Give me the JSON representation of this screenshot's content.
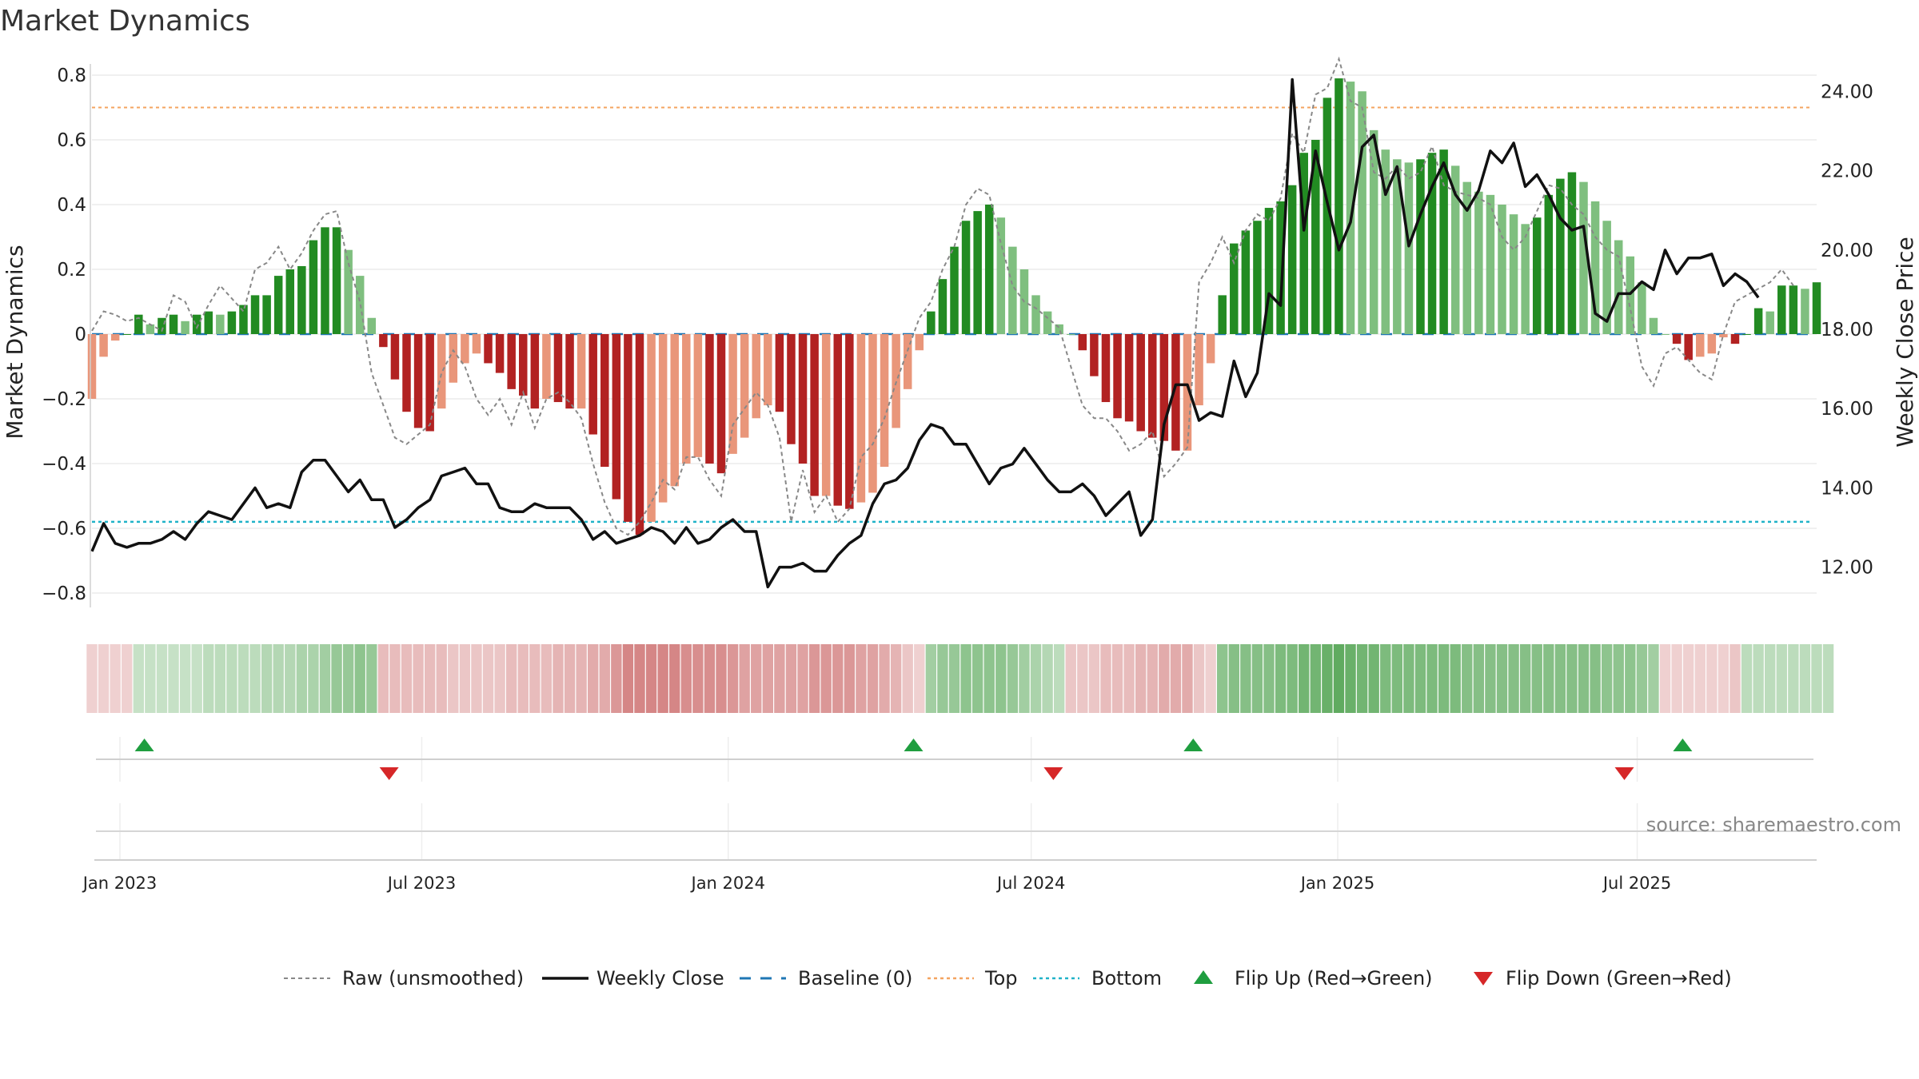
{
  "title": "Market Dynamics",
  "source": "source: sharemaestro.com",
  "colors": {
    "strong_green": "#228b22",
    "light_green": "#7fbf7f",
    "strong_red": "#b22222",
    "light_red": "#e9967a",
    "close_line": "#111111",
    "raw_line": "#888888",
    "baseline": "#1f77b4",
    "top_line": "#f4a460",
    "bottom_line": "#20b2c8",
    "flip_up": "#1f9e3f",
    "flip_down": "#d62728"
  },
  "chart_data": {
    "type": "bar",
    "title": "Market Dynamics",
    "ylabel_left": "Market Dynamics",
    "ylabel_right": "Weekly Close Price",
    "ylim_left": [
      -0.9,
      0.85
    ],
    "ylim_right": [
      10.9,
      24.7
    ],
    "left_ticks": [
      "0.8",
      "0.6",
      "0.4",
      "0.2",
      "0",
      "−0.2",
      "−0.4",
      "−0.6",
      "−0.8"
    ],
    "left_tick_values": [
      0.8,
      0.6,
      0.4,
      0.2,
      0,
      -0.2,
      -0.4,
      -0.6,
      -0.8
    ],
    "right_ticks": [
      "24.00",
      "22.00",
      "20.00",
      "18.00",
      "16.00",
      "14.00",
      "12.00"
    ],
    "right_tick_values": [
      24,
      22,
      20,
      18,
      16,
      14,
      12
    ],
    "x_ticks": [
      "Jan 2023",
      "Jul 2023",
      "Jan 2024",
      "Jul 2024",
      "Jan 2025",
      "Jul 2025"
    ],
    "x_tick_weeks": [
      2.4,
      28.3,
      54.6,
      80.6,
      106.9,
      132.6
    ],
    "top_level": 0.7,
    "bottom_level": -0.58,
    "baseline_level": 0,
    "dynamics": [
      -0.2,
      -0.07,
      -0.02,
      0,
      0.06,
      0.03,
      0.05,
      0.06,
      0.04,
      0.06,
      0.07,
      0.06,
      0.07,
      0.09,
      0.12,
      0.12,
      0.18,
      0.2,
      0.21,
      0.29,
      0.33,
      0.33,
      0.26,
      0.18,
      0.05,
      -0.04,
      -0.14,
      -0.24,
      -0.29,
      -0.3,
      -0.23,
      -0.15,
      -0.09,
      -0.06,
      -0.09,
      -0.12,
      -0.17,
      -0.19,
      -0.23,
      -0.2,
      -0.21,
      -0.23,
      -0.23,
      -0.31,
      -0.41,
      -0.51,
      -0.58,
      -0.62,
      -0.58,
      -0.52,
      -0.47,
      -0.4,
      -0.38,
      -0.4,
      -0.43,
      -0.37,
      -0.32,
      -0.26,
      -0.22,
      -0.24,
      -0.34,
      -0.4,
      -0.5,
      -0.5,
      -0.53,
      -0.54,
      -0.52,
      -0.49,
      -0.41,
      -0.29,
      -0.17,
      -0.05,
      0.07,
      0.17,
      0.27,
      0.35,
      0.38,
      0.4,
      0.36,
      0.27,
      0.2,
      0.12,
      0.07,
      0.03,
      0,
      -0.05,
      -0.13,
      -0.21,
      -0.26,
      -0.27,
      -0.3,
      -0.32,
      -0.33,
      -0.36,
      -0.36,
      -0.22,
      -0.09,
      0.12,
      0.28,
      0.32,
      0.35,
      0.39,
      0.41,
      0.46,
      0.56,
      0.6,
      0.73,
      0.79,
      0.78,
      0.75,
      0.63,
      0.57,
      0.54,
      0.53,
      0.54,
      0.56,
      0.57,
      0.52,
      0.47,
      0.44,
      0.43,
      0.4,
      0.37,
      0.34,
      0.36,
      0.43,
      0.48,
      0.5,
      0.47,
      0.41,
      0.35,
      0.29,
      0.24,
      0.16,
      0.05,
      0,
      -0.03,
      -0.08,
      -0.07,
      -0.06,
      -0.01,
      -0.03,
      0,
      0.08,
      0.07,
      0.15,
      0.15,
      0.14,
      0.16
    ],
    "raw": [
      0.01,
      0.07,
      0.06,
      0.04,
      0.05,
      0.03,
      0.01,
      0.12,
      0.1,
      0.02,
      0.09,
      0.15,
      0.11,
      0.07,
      0.2,
      0.22,
      0.27,
      0.2,
      0.25,
      0.32,
      0.37,
      0.38,
      0.22,
      0.1,
      -0.12,
      -0.22,
      -0.32,
      -0.34,
      -0.31,
      -0.28,
      -0.12,
      -0.05,
      -0.1,
      -0.2,
      -0.25,
      -0.2,
      -0.28,
      -0.18,
      -0.29,
      -0.2,
      -0.18,
      -0.21,
      -0.26,
      -0.4,
      -0.52,
      -0.6,
      -0.62,
      -0.58,
      -0.52,
      -0.45,
      -0.48,
      -0.38,
      -0.38,
      -0.45,
      -0.5,
      -0.28,
      -0.23,
      -0.18,
      -0.22,
      -0.32,
      -0.58,
      -0.42,
      -0.55,
      -0.5,
      -0.58,
      -0.54,
      -0.38,
      -0.34,
      -0.26,
      -0.15,
      -0.05,
      0.05,
      0.1,
      0.2,
      0.27,
      0.4,
      0.45,
      0.43,
      0.28,
      0.15,
      0.1,
      0.08,
      0.05,
      0.02,
      -0.1,
      -0.22,
      -0.26,
      -0.26,
      -0.3,
      -0.36,
      -0.34,
      -0.3,
      -0.44,
      -0.4,
      -0.35,
      0.16,
      0.22,
      0.3,
      0.22,
      0.32,
      0.37,
      0.35,
      0.42,
      0.62,
      0.56,
      0.74,
      0.76,
      0.85,
      0.72,
      0.7,
      0.5,
      0.48,
      0.52,
      0.48,
      0.5,
      0.58,
      0.46,
      0.44,
      0.43,
      0.42,
      0.4,
      0.3,
      0.26,
      0.3,
      0.38,
      0.46,
      0.45,
      0.4,
      0.37,
      0.3,
      0.26,
      0.24,
      0.08,
      -0.1,
      -0.16,
      -0.06,
      -0.04,
      -0.08,
      -0.12,
      -0.14,
      0,
      0.1,
      0.12,
      0.14,
      0.16,
      0.2,
      0.15
    ],
    "close": [
      12.4,
      13.1,
      12.6,
      12.5,
      12.6,
      12.6,
      12.7,
      12.9,
      12.7,
      13.1,
      13.4,
      13.3,
      13.2,
      13.6,
      14.0,
      13.5,
      13.6,
      13.5,
      14.4,
      14.7,
      14.7,
      14.3,
      13.9,
      14.2,
      13.7,
      13.7,
      13.0,
      13.2,
      13.5,
      13.7,
      14.3,
      14.4,
      14.5,
      14.1,
      14.1,
      13.5,
      13.4,
      13.4,
      13.6,
      13.5,
      13.5,
      13.5,
      13.2,
      12.7,
      12.9,
      12.6,
      12.7,
      12.8,
      13.0,
      12.9,
      12.6,
      13.0,
      12.6,
      12.7,
      13.0,
      13.2,
      12.9,
      12.9,
      11.5,
      12.0,
      12.0,
      12.1,
      11.9,
      11.9,
      12.3,
      12.6,
      12.8,
      13.6,
      14.1,
      14.2,
      14.5,
      15.2,
      15.6,
      15.5,
      15.1,
      15.1,
      14.6,
      14.1,
      14.5,
      14.6,
      15.0,
      14.6,
      14.2,
      13.9,
      13.9,
      14.1,
      13.8,
      13.3,
      13.6,
      13.9,
      12.8,
      13.2,
      15.6,
      16.6,
      16.6,
      15.7,
      15.9,
      15.8,
      17.2,
      16.3,
      16.9,
      18.9,
      18.6,
      24.3,
      20.5,
      22.5,
      21.2,
      20.0,
      20.7,
      22.6,
      22.9,
      21.4,
      22.1,
      20.1,
      20.9,
      21.6,
      22.2,
      21.4,
      21.0,
      21.5,
      22.5,
      22.2,
      22.7,
      21.6,
      21.9,
      21.4,
      20.8,
      20.5,
      20.6,
      18.4,
      18.2,
      18.9,
      18.9,
      19.2,
      19.0,
      20.0,
      19.4,
      19.8,
      19.8,
      19.9,
      19.1,
      19.4,
      19.2,
      18.8
    ],
    "ribbon": [
      -0.25,
      -0.25,
      -0.25,
      -0.25,
      0.3,
      0.3,
      0.3,
      0.3,
      0.3,
      0.3,
      0.35,
      0.35,
      0.35,
      0.35,
      0.35,
      0.4,
      0.4,
      0.4,
      0.45,
      0.45,
      0.5,
      0.55,
      0.55,
      0.6,
      0.55,
      -0.35,
      -0.35,
      -0.35,
      -0.35,
      -0.35,
      -0.35,
      -0.3,
      -0.3,
      -0.3,
      -0.3,
      -0.3,
      -0.35,
      -0.35,
      -0.35,
      -0.35,
      -0.4,
      -0.4,
      -0.4,
      -0.45,
      -0.45,
      -0.55,
      -0.65,
      -0.65,
      -0.65,
      -0.65,
      -0.65,
      -0.6,
      -0.6,
      -0.6,
      -0.6,
      -0.55,
      -0.5,
      -0.5,
      -0.5,
      -0.5,
      -0.5,
      -0.5,
      -0.55,
      -0.55,
      -0.55,
      -0.55,
      -0.5,
      -0.5,
      -0.45,
      -0.4,
      -0.3,
      -0.25,
      0.5,
      0.55,
      0.55,
      0.6,
      0.6,
      0.6,
      0.6,
      0.55,
      0.5,
      0.45,
      0.4,
      0.35,
      -0.3,
      -0.3,
      -0.3,
      -0.35,
      -0.35,
      -0.35,
      -0.4,
      -0.4,
      -0.45,
      -0.45,
      -0.45,
      -0.3,
      -0.25,
      0.6,
      0.65,
      0.65,
      0.65,
      0.65,
      0.7,
      0.7,
      0.75,
      0.75,
      0.8,
      0.85,
      0.8,
      0.75,
      0.75,
      0.7,
      0.7,
      0.7,
      0.7,
      0.7,
      0.7,
      0.7,
      0.65,
      0.65,
      0.65,
      0.65,
      0.65,
      0.65,
      0.65,
      0.65,
      0.65,
      0.65,
      0.65,
      0.65,
      0.6,
      0.6,
      0.6,
      0.55,
      0.5,
      -0.25,
      -0.25,
      -0.25,
      -0.25,
      -0.25,
      -0.25,
      -0.3,
      0.35,
      0.35,
      0.35,
      0.35,
      0.35,
      0.35,
      0.35,
      0.35
    ],
    "flips_up_weeks": [
      4.5,
      70.5,
      94.5,
      136.5
    ],
    "flips_down_weeks": [
      25.5,
      82.5,
      131.5
    ],
    "legend": [
      {
        "label": "Raw (unsmoothed)",
        "kind": "dashed-gray"
      },
      {
        "label": "Weekly Close",
        "kind": "solid-black"
      },
      {
        "label": "Baseline (0)",
        "kind": "dash-blue"
      },
      {
        "label": "Top",
        "kind": "dot-orange"
      },
      {
        "label": "Bottom",
        "kind": "dot-cyan"
      },
      {
        "label": "Flip Up (Red→Green)",
        "kind": "triangle-up"
      },
      {
        "label": "Flip Down (Green→Red)",
        "kind": "triangle-down"
      }
    ]
  }
}
